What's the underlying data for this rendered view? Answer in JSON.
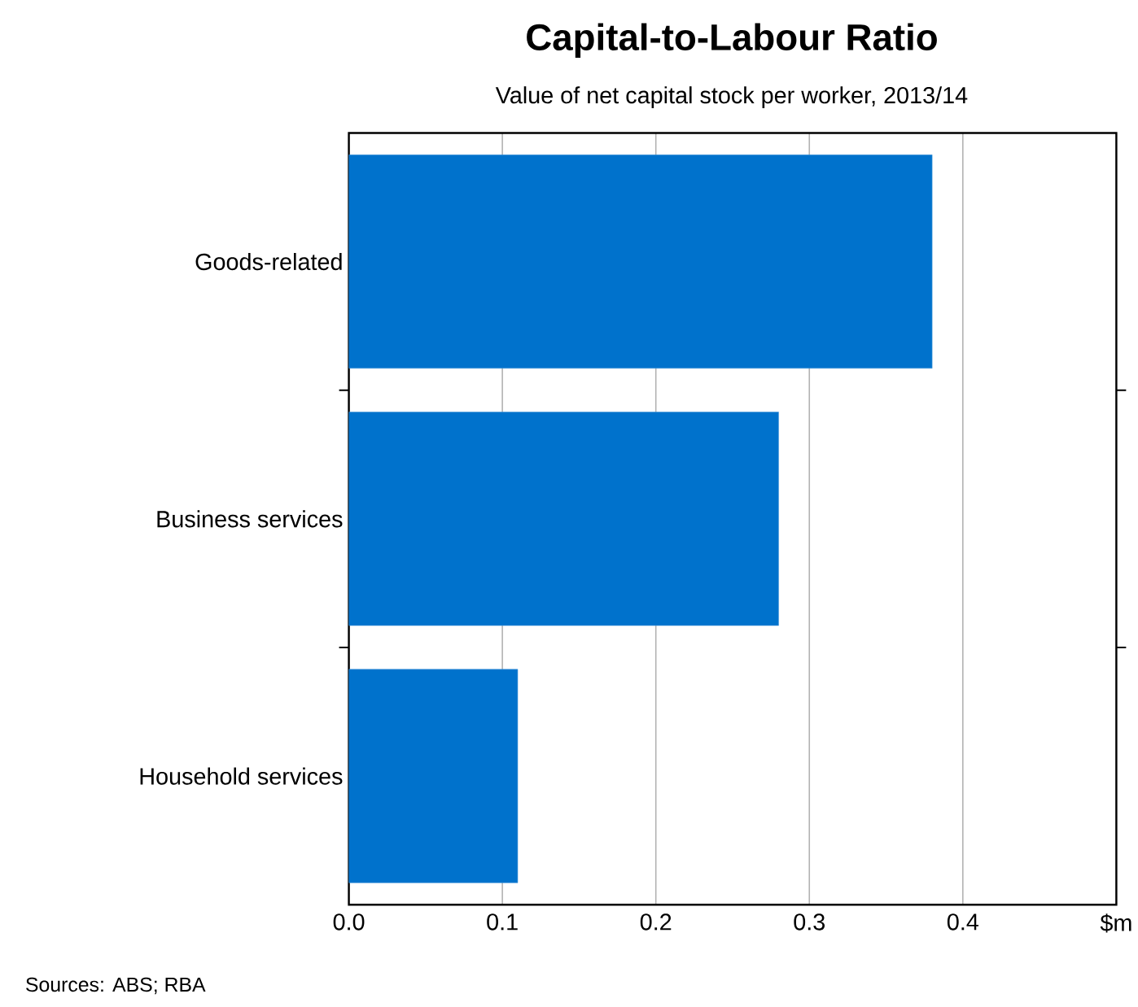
{
  "chart_data": {
    "type": "bar",
    "orientation": "horizontal",
    "title": "Capital-to-Labour Ratio",
    "subtitle": "Value of net capital stock per worker, 2013/14",
    "categories": [
      "Goods-related",
      "Business services",
      "Household services"
    ],
    "values": [
      0.38,
      0.28,
      0.11
    ],
    "color": "#0072cc",
    "xlim": [
      0,
      0.5
    ],
    "xticks": [
      {
        "value": 0,
        "label": "0.0"
      },
      0.1,
      0.2,
      0.3,
      0.4,
      {
        "value": 0.5,
        "label": "$m"
      }
    ],
    "grid": "x",
    "annotations": [
      "Sources: ABS; RBA"
    ]
  }
}
